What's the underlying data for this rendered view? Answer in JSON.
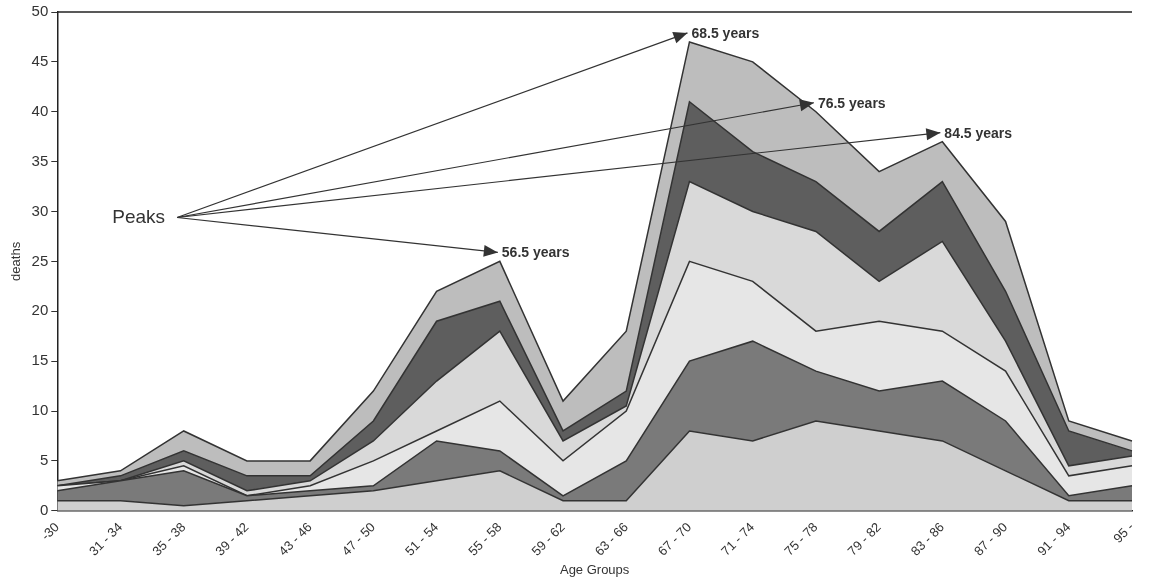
{
  "chart_data": {
    "type": "area",
    "stacked": true,
    "xlabel": "Age Groups",
    "ylabel": "deaths",
    "categories": [
      "-30",
      "31 - 34",
      "35 - 38",
      "39 - 42",
      "43 - 46",
      "47 - 50",
      "51 - 54",
      "55 - 58",
      "59 - 62",
      "63 - 66",
      "67 - 70",
      "71 - 74",
      "75 - 78",
      "79 - 82",
      "83 - 86",
      "87 - 90",
      "91 - 94",
      "95 -"
    ],
    "series": [
      {
        "color": "#cfcfcf",
        "values": [
          1,
          1,
          0.5,
          1,
          1.5,
          2,
          3,
          4,
          1,
          1,
          8,
          7,
          9,
          8,
          7,
          4,
          1,
          1
        ]
      },
      {
        "color": "#7a7a7a",
        "values": [
          1,
          2,
          3.5,
          0.5,
          0.5,
          0.5,
          4,
          2,
          0.5,
          4,
          7,
          10,
          5,
          4,
          6,
          5,
          0.5,
          1.5
        ]
      },
      {
        "color": "#e6e6e6",
        "values": [
          0.5,
          0,
          0.5,
          0,
          0.5,
          2.5,
          1,
          5,
          3.5,
          5,
          10,
          6,
          4,
          7,
          5,
          5,
          2,
          2
        ]
      },
      {
        "color": "#d9d9d9",
        "values": [
          0,
          0,
          0.5,
          0.5,
          0.5,
          2,
          5,
          7,
          2,
          0.5,
          8,
          7,
          10,
          4,
          9,
          3,
          1,
          1
        ]
      },
      {
        "color": "#5e5e5e",
        "values": [
          0,
          0.5,
          1,
          1.5,
          0.5,
          2,
          6,
          3,
          1,
          1.5,
          8,
          6,
          5,
          5,
          6,
          5,
          3.5,
          0.5
        ]
      },
      {
        "color": "#bdbdbd",
        "values": [
          0.5,
          0.5,
          2,
          1.5,
          1.5,
          3,
          3,
          4,
          3,
          6,
          6,
          9,
          7,
          6,
          4,
          7,
          1,
          1
        ]
      }
    ],
    "ylim": [
      0,
      50
    ],
    "yticks": [
      0,
      5,
      10,
      15,
      20,
      25,
      30,
      35,
      40,
      45,
      50
    ],
    "grid": false,
    "legend": false,
    "annotations": [
      "Peaks",
      {
        "text": "56.5 years",
        "x": "55 - 58",
        "y": 25
      },
      {
        "text": "68.5 years",
        "x": "67 - 70",
        "y": 47
      },
      {
        "text": "76.5 years",
        "x": "75 - 78",
        "y": 40
      },
      {
        "text": "84.5 years",
        "x": "83 - 86",
        "y": 37
      }
    ]
  }
}
